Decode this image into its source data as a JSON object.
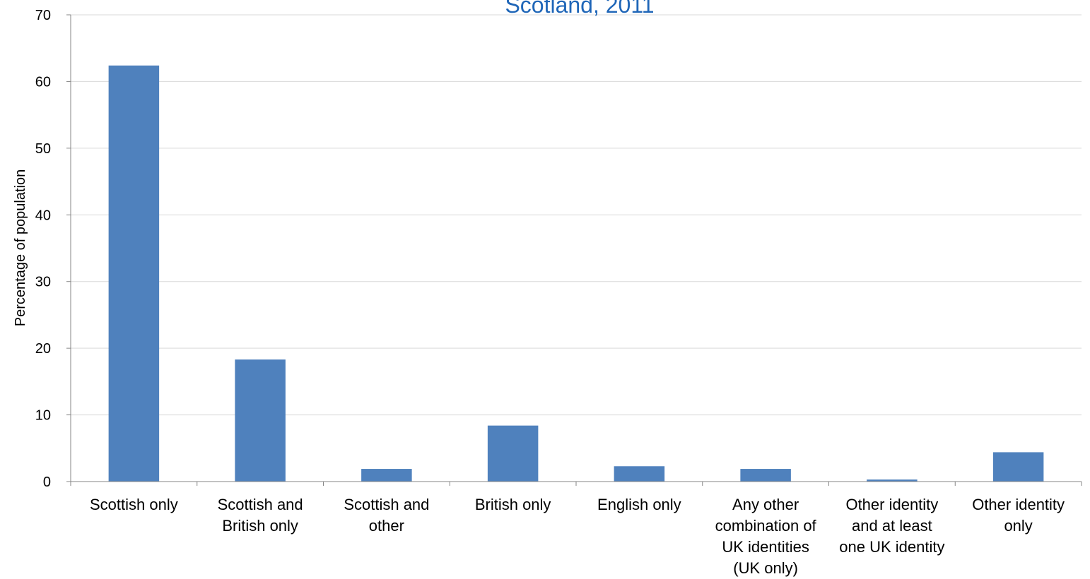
{
  "chart_data": {
    "type": "bar",
    "title": "Scotland, 2011",
    "xlabel": "",
    "ylabel": "Percentage of population",
    "ylim": [
      0,
      70
    ],
    "yticks": [
      0,
      10,
      20,
      30,
      40,
      50,
      60,
      70
    ],
    "grid": true,
    "bar_color": "#4f81bd",
    "title_color": "#1f66b8",
    "categories": [
      [
        "Scottish only"
      ],
      [
        "Scottish and",
        "British only"
      ],
      [
        "Scottish and",
        "other"
      ],
      [
        "British only"
      ],
      [
        "English only"
      ],
      [
        "Any other",
        "combination of",
        "UK identities",
        "(UK only)"
      ],
      [
        "Other identity",
        "and at least",
        "one UK identity"
      ],
      [
        "Other identity",
        "only"
      ]
    ],
    "values": [
      62.4,
      18.3,
      1.9,
      8.4,
      2.3,
      1.9,
      0.3,
      4.4
    ]
  }
}
